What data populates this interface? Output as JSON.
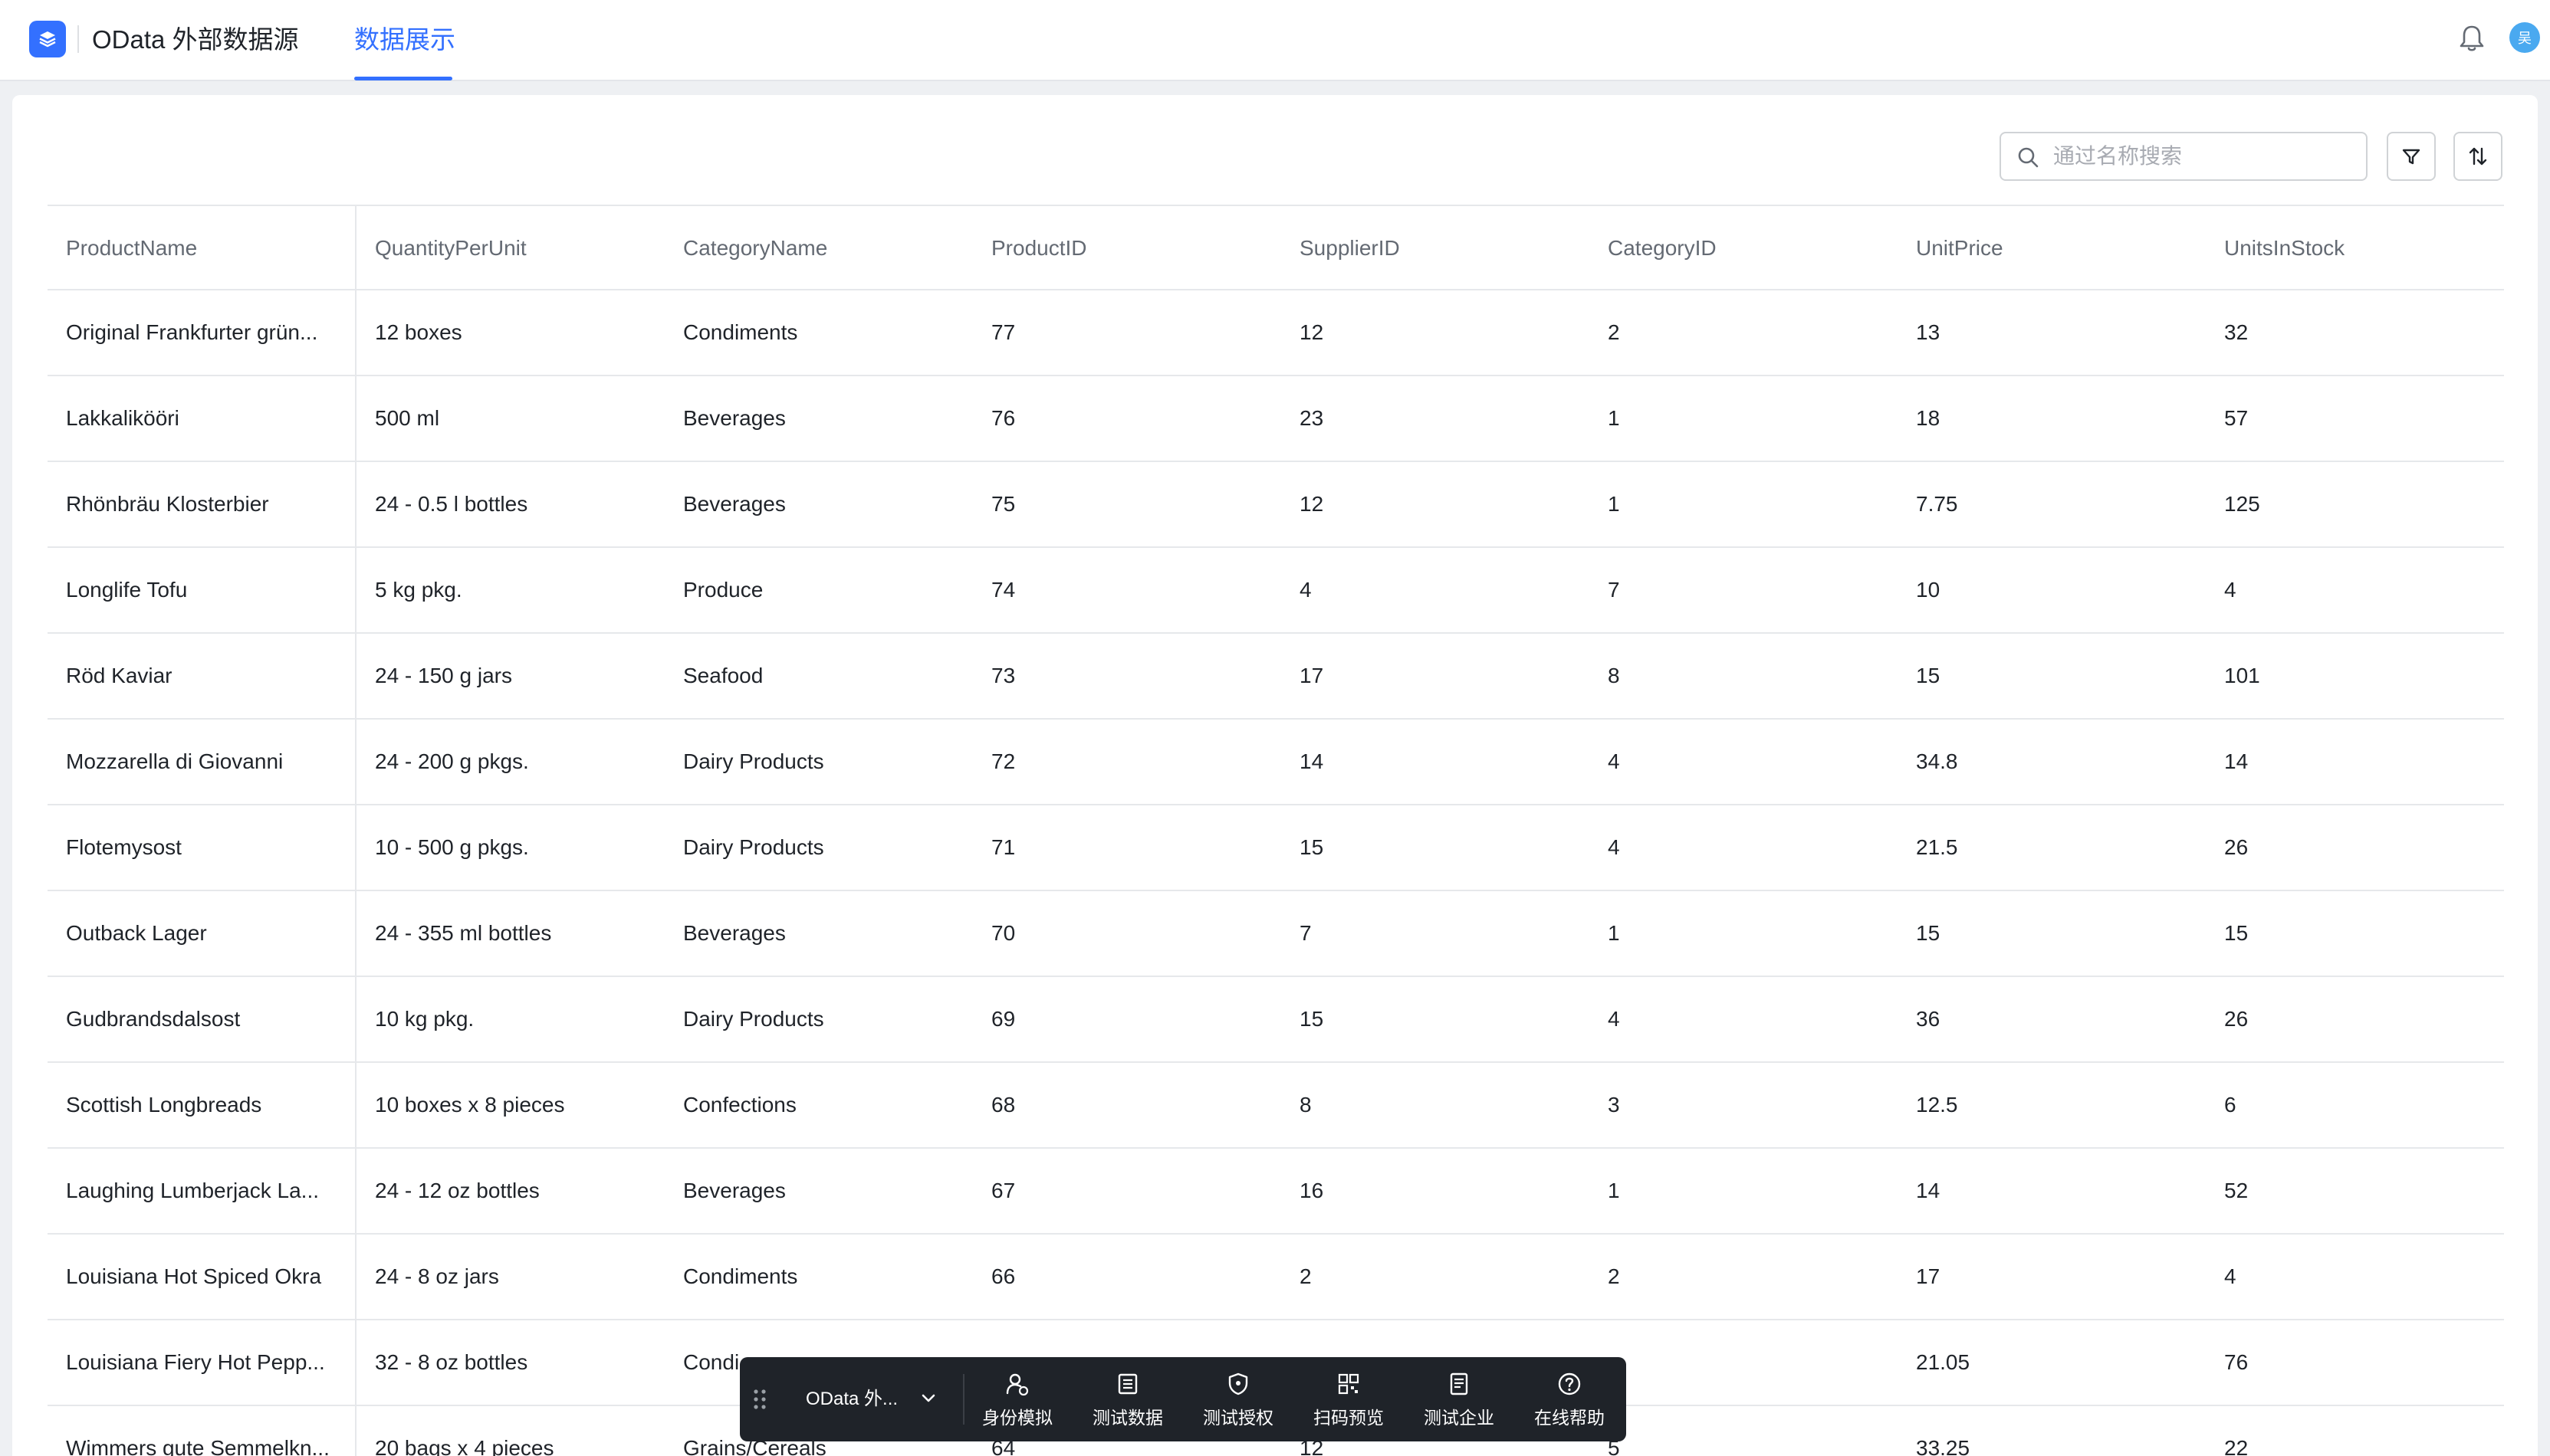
{
  "header": {
    "app_title": "OData 外部数据源",
    "tab_label": "数据展示",
    "avatar_text": "吴"
  },
  "toolbar": {
    "search_placeholder": "通过名称搜索",
    "search_value": ""
  },
  "table": {
    "columns": [
      "ProductName",
      "QuantityPerUnit",
      "CategoryName",
      "ProductID",
      "SupplierID",
      "CategoryID",
      "UnitPrice",
      "UnitsInStock"
    ],
    "rows": [
      [
        "Original Frankfurter grün...",
        "12 boxes",
        "Condiments",
        "77",
        "12",
        "2",
        "13",
        "32"
      ],
      [
        "Lakkalikööri",
        "500 ml",
        "Beverages",
        "76",
        "23",
        "1",
        "18",
        "57"
      ],
      [
        "Rhönbräu Klosterbier",
        "24 - 0.5 l bottles",
        "Beverages",
        "75",
        "12",
        "1",
        "7.75",
        "125"
      ],
      [
        "Longlife Tofu",
        "5 kg pkg.",
        "Produce",
        "74",
        "4",
        "7",
        "10",
        "4"
      ],
      [
        "Röd Kaviar",
        "24 - 150 g jars",
        "Seafood",
        "73",
        "17",
        "8",
        "15",
        "101"
      ],
      [
        "Mozzarella di Giovanni",
        "24 - 200 g pkgs.",
        "Dairy Products",
        "72",
        "14",
        "4",
        "34.8",
        "14"
      ],
      [
        "Flotemysost",
        "10 - 500 g pkgs.",
        "Dairy Products",
        "71",
        "15",
        "4",
        "21.5",
        "26"
      ],
      [
        "Outback Lager",
        "24 - 355 ml bottles",
        "Beverages",
        "70",
        "7",
        "1",
        "15",
        "15"
      ],
      [
        "Gudbrandsdalsost",
        "10 kg pkg.",
        "Dairy Products",
        "69",
        "15",
        "4",
        "36",
        "26"
      ],
      [
        "Scottish Longbreads",
        "10 boxes x 8 pieces",
        "Confections",
        "68",
        "8",
        "3",
        "12.5",
        "6"
      ],
      [
        "Laughing Lumberjack La...",
        "24 - 12 oz bottles",
        "Beverages",
        "67",
        "16",
        "1",
        "14",
        "52"
      ],
      [
        "Louisiana Hot Spiced Okra",
        "24 - 8 oz jars",
        "Condiments",
        "66",
        "2",
        "2",
        "17",
        "4"
      ],
      [
        "Louisiana Fiery Hot Pepp...",
        "32 - 8 oz bottles",
        "Condi",
        "",
        "",
        "",
        "21.05",
        "76"
      ],
      [
        "Wimmers gute Semmelkn...",
        "20 bags x 4 pieces",
        "Grains/Cereals",
        "64",
        "12",
        "5",
        "33.25",
        "22"
      ]
    ]
  },
  "devbar": {
    "datasource_label": "OData 外...",
    "items": [
      {
        "label": "身份模拟",
        "icon": "user-switch-icon"
      },
      {
        "label": "测试数据",
        "icon": "data-list-icon"
      },
      {
        "label": "测试授权",
        "icon": "shield-icon"
      },
      {
        "label": "扫码预览",
        "icon": "qrcode-icon"
      },
      {
        "label": "测试企业",
        "icon": "document-icon"
      },
      {
        "label": "在线帮助",
        "icon": "help-icon"
      }
    ]
  }
}
